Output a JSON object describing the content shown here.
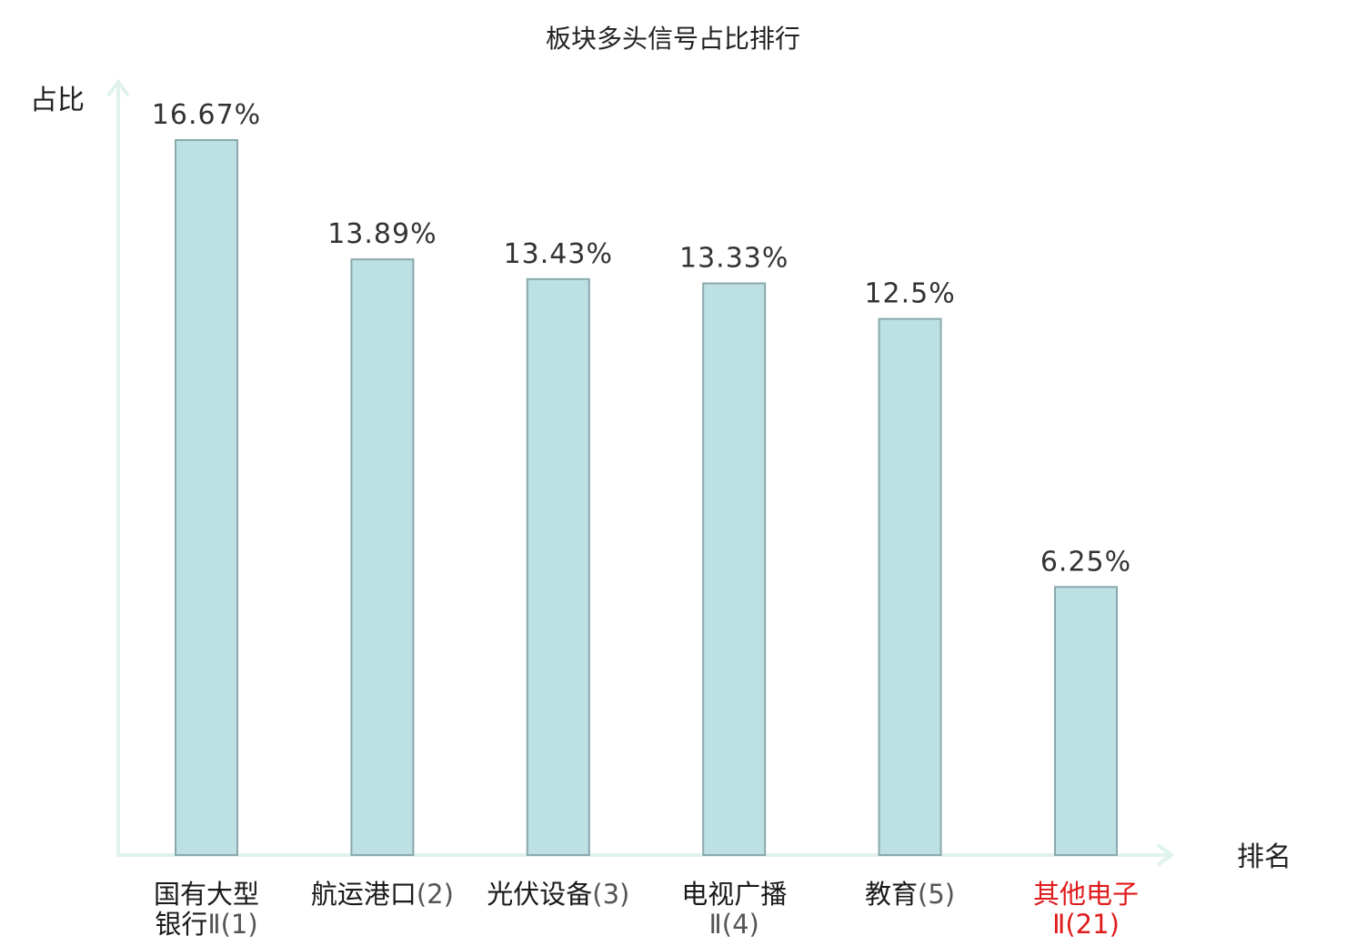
{
  "chart_data": {
    "type": "bar",
    "title": "板块多头信号占比排行",
    "ylabel": "占比",
    "xlabel": "排名",
    "ylim": [
      0,
      18
    ],
    "grid": false,
    "categories": [
      {
        "name_line1": "国有大型",
        "name_line2": "银行",
        "rank": "Ⅱ(1)",
        "highlight": false
      },
      {
        "name_line1": "航运港口",
        "name_line2": "",
        "rank": "(2)",
        "highlight": false
      },
      {
        "name_line1": "光伏设备",
        "name_line2": "",
        "rank": "(3)",
        "highlight": false
      },
      {
        "name_line1": "电视广播",
        "name_line2": "",
        "rank": "Ⅱ(4)",
        "highlight": false
      },
      {
        "name_line1": "教育",
        "name_line2": "",
        "rank": "(5)",
        "highlight": false
      },
      {
        "name_line1": "其他电子",
        "name_line2": "",
        "rank": "Ⅱ(21)",
        "highlight": true
      }
    ],
    "values": [
      16.67,
      13.89,
      13.43,
      13.33,
      12.5,
      6.25
    ],
    "value_labels": [
      "16.67%",
      "13.89%",
      "13.43%",
      "13.33%",
      "12.5%",
      "6.25%"
    ],
    "colors": {
      "bar_fill": "#bde0e3",
      "bar_stroke": "#8aa9ab",
      "axis": "#dff2ee",
      "highlight": "#e01b1b"
    }
  }
}
